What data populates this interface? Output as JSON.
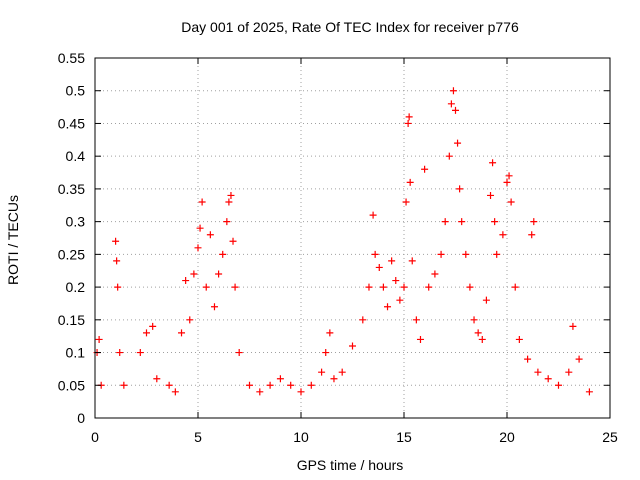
{
  "chart_data": {
    "type": "scatter",
    "title": "Day 001 of 2025, Rate Of TEC Index for receiver p776",
    "xlabel": "GPS time / hours",
    "ylabel": "ROTI / TECUs",
    "xlim": [
      0,
      25
    ],
    "ylim": [
      0,
      0.55
    ],
    "xticks": [
      0,
      5,
      10,
      15,
      20,
      25
    ],
    "xtick_labels": [
      "0",
      "5",
      "10",
      "15",
      "20",
      "25"
    ],
    "yticks": [
      0,
      0.05,
      0.1,
      0.15,
      0.2,
      0.25,
      0.3,
      0.35,
      0.4,
      0.45,
      0.5,
      0.55
    ],
    "ytick_labels": [
      "0",
      "0.05",
      "0.1",
      "0.15",
      "0.2",
      "0.25",
      "0.3",
      "0.35",
      "0.4",
      "0.45",
      "0.5",
      "0.55"
    ],
    "grid": true,
    "marker": "plus",
    "marker_color": "#ff0000",
    "series": [
      {
        "values": [
          [
            0.1,
            0.1
          ],
          [
            0.2,
            0.12
          ],
          [
            0.3,
            0.05
          ],
          [
            1.0,
            0.27
          ],
          [
            1.05,
            0.24
          ],
          [
            1.1,
            0.2
          ],
          [
            1.2,
            0.1
          ],
          [
            1.4,
            0.05
          ],
          [
            2.2,
            0.1
          ],
          [
            2.5,
            0.13
          ],
          [
            2.8,
            0.14
          ],
          [
            3.0,
            0.06
          ],
          [
            3.6,
            0.05
          ],
          [
            3.9,
            0.04
          ],
          [
            4.2,
            0.13
          ],
          [
            4.4,
            0.21
          ],
          [
            4.6,
            0.15
          ],
          [
            4.8,
            0.22
          ],
          [
            5.0,
            0.26
          ],
          [
            5.1,
            0.29
          ],
          [
            5.2,
            0.33
          ],
          [
            5.4,
            0.2
          ],
          [
            5.6,
            0.28
          ],
          [
            5.8,
            0.17
          ],
          [
            6.0,
            0.22
          ],
          [
            6.2,
            0.25
          ],
          [
            6.4,
            0.3
          ],
          [
            6.5,
            0.33
          ],
          [
            6.6,
            0.34
          ],
          [
            6.7,
            0.27
          ],
          [
            6.8,
            0.2
          ],
          [
            7.0,
            0.1
          ],
          [
            7.5,
            0.05
          ],
          [
            8.0,
            0.04
          ],
          [
            8.5,
            0.05
          ],
          [
            9.0,
            0.06
          ],
          [
            9.5,
            0.05
          ],
          [
            10.0,
            0.04
          ],
          [
            10.5,
            0.05
          ],
          [
            11.0,
            0.07
          ],
          [
            11.2,
            0.1
          ],
          [
            11.4,
            0.13
          ],
          [
            11.6,
            0.06
          ],
          [
            12.0,
            0.07
          ],
          [
            12.5,
            0.11
          ],
          [
            13.0,
            0.15
          ],
          [
            13.3,
            0.2
          ],
          [
            13.5,
            0.31
          ],
          [
            13.6,
            0.25
          ],
          [
            13.8,
            0.23
          ],
          [
            14.0,
            0.2
          ],
          [
            14.2,
            0.17
          ],
          [
            14.4,
            0.24
          ],
          [
            14.6,
            0.21
          ],
          [
            14.8,
            0.18
          ],
          [
            15.0,
            0.2
          ],
          [
            15.1,
            0.33
          ],
          [
            15.2,
            0.45
          ],
          [
            15.25,
            0.46
          ],
          [
            15.3,
            0.36
          ],
          [
            15.4,
            0.24
          ],
          [
            15.6,
            0.15
          ],
          [
            15.8,
            0.12
          ],
          [
            16.0,
            0.38
          ],
          [
            16.2,
            0.2
          ],
          [
            16.5,
            0.22
          ],
          [
            16.8,
            0.25
          ],
          [
            17.0,
            0.3
          ],
          [
            17.2,
            0.4
          ],
          [
            17.3,
            0.48
          ],
          [
            17.4,
            0.5
          ],
          [
            17.5,
            0.47
          ],
          [
            17.6,
            0.42
          ],
          [
            17.7,
            0.35
          ],
          [
            17.8,
            0.3
          ],
          [
            18.0,
            0.25
          ],
          [
            18.2,
            0.2
          ],
          [
            18.4,
            0.15
          ],
          [
            18.6,
            0.13
          ],
          [
            18.8,
            0.12
          ],
          [
            19.0,
            0.18
          ],
          [
            19.2,
            0.34
          ],
          [
            19.3,
            0.39
          ],
          [
            19.4,
            0.3
          ],
          [
            19.5,
            0.25
          ],
          [
            19.8,
            0.28
          ],
          [
            20.0,
            0.36
          ],
          [
            20.1,
            0.37
          ],
          [
            20.2,
            0.33
          ],
          [
            20.4,
            0.2
          ],
          [
            20.6,
            0.12
          ],
          [
            21.0,
            0.09
          ],
          [
            21.2,
            0.28
          ],
          [
            21.3,
            0.3
          ],
          [
            21.5,
            0.07
          ],
          [
            22.0,
            0.06
          ],
          [
            22.5,
            0.05
          ],
          [
            23.0,
            0.07
          ],
          [
            23.2,
            0.14
          ],
          [
            23.5,
            0.09
          ],
          [
            24.0,
            0.04
          ]
        ]
      }
    ]
  }
}
